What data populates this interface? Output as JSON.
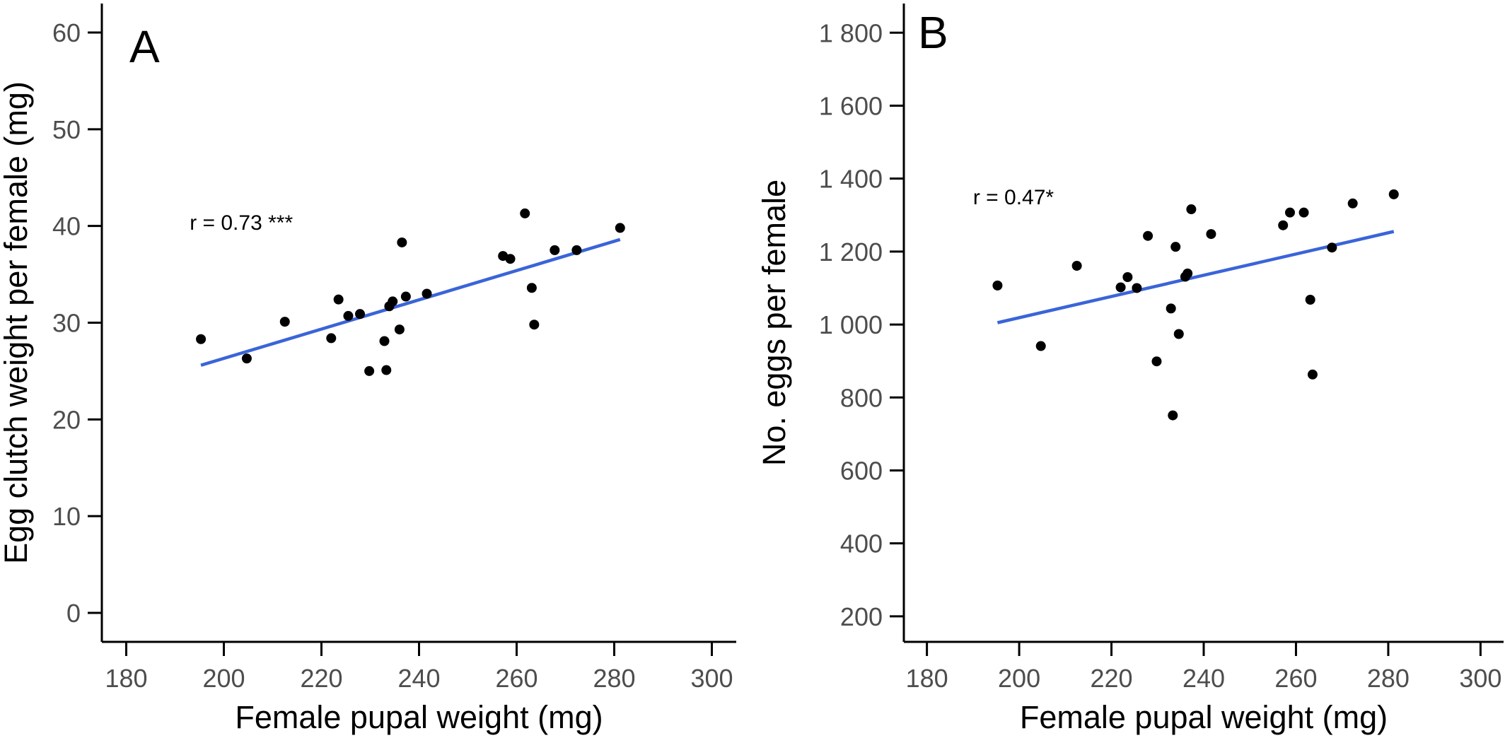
{
  "colors": {
    "points": "#000000",
    "fit_line": "#3a64d8",
    "axis": "#000000",
    "tick_label": "#4d4d4d"
  },
  "chart_data": [
    {
      "type": "scatter",
      "panel_label": "A",
      "xlabel": "Female pupal weight (mg)",
      "ylabel": "Egg clutch weight per female (mg)",
      "xlim": [
        175,
        305
      ],
      "ylim": [
        -3,
        63
      ],
      "xticks": [
        180,
        200,
        220,
        240,
        260,
        280,
        300
      ],
      "xtick_labels": [
        "180",
        "200",
        "220",
        "240",
        "260",
        "280",
        "300"
      ],
      "yticks": [
        0,
        10,
        20,
        30,
        40,
        50,
        60
      ],
      "ytick_labels": [
        "0",
        "10",
        "20",
        "30",
        "40",
        "50",
        "60"
      ],
      "grid": false,
      "annotation": {
        "text": "r = 0.73 ***",
        "x": 193,
        "y": 39.6
      },
      "fit_line": {
        "x": [
          195.3,
          281.2
        ],
        "y": [
          25.6,
          38.6
        ]
      },
      "points": [
        {
          "x": 195.3,
          "y": 28.3
        },
        {
          "x": 204.7,
          "y": 26.3
        },
        {
          "x": 212.5,
          "y": 30.1
        },
        {
          "x": 222.0,
          "y": 28.4
        },
        {
          "x": 223.5,
          "y": 32.4
        },
        {
          "x": 225.5,
          "y": 30.7
        },
        {
          "x": 227.9,
          "y": 30.9
        },
        {
          "x": 229.8,
          "y": 25.0
        },
        {
          "x": 232.9,
          "y": 28.1
        },
        {
          "x": 233.3,
          "y": 25.1
        },
        {
          "x": 233.9,
          "y": 31.7
        },
        {
          "x": 234.6,
          "y": 32.2
        },
        {
          "x": 236.0,
          "y": 29.3
        },
        {
          "x": 236.5,
          "y": 38.3
        },
        {
          "x": 237.3,
          "y": 32.7
        },
        {
          "x": 241.6,
          "y": 33.0
        },
        {
          "x": 257.2,
          "y": 36.9
        },
        {
          "x": 258.7,
          "y": 36.6
        },
        {
          "x": 261.7,
          "y": 41.3
        },
        {
          "x": 263.1,
          "y": 33.6
        },
        {
          "x": 263.6,
          "y": 29.8
        },
        {
          "x": 267.8,
          "y": 37.5
        },
        {
          "x": 272.3,
          "y": 37.5
        },
        {
          "x": 281.2,
          "y": 39.8
        }
      ]
    },
    {
      "type": "scatter",
      "panel_label": "B",
      "xlabel": "Female pupal weight (mg)",
      "ylabel": "No. eggs per female",
      "xlim": [
        175,
        305
      ],
      "ylim": [
        130,
        1880
      ],
      "xticks": [
        180,
        200,
        220,
        240,
        260,
        280,
        300
      ],
      "xtick_labels": [
        "180",
        "200",
        "220",
        "240",
        "260",
        "280",
        "300"
      ],
      "yticks": [
        200,
        400,
        600,
        800,
        1000,
        1200,
        1400,
        1600,
        1800
      ],
      "ytick_labels": [
        "200",
        "400",
        "600",
        "800",
        "1 000",
        "1 200",
        "1 400",
        "1 600",
        "1 800"
      ],
      "grid": false,
      "annotation": {
        "text": "r = 0.47*",
        "x": 190,
        "y": 1330
      },
      "fit_line": {
        "x": [
          195.3,
          281.2
        ],
        "y": [
          1005,
          1255
        ]
      },
      "points": [
        {
          "x": 195.3,
          "y": 1107
        },
        {
          "x": 204.7,
          "y": 941
        },
        {
          "x": 212.5,
          "y": 1161
        },
        {
          "x": 222.0,
          "y": 1102
        },
        {
          "x": 223.5,
          "y": 1130
        },
        {
          "x": 225.5,
          "y": 1100
        },
        {
          "x": 227.9,
          "y": 1243
        },
        {
          "x": 229.8,
          "y": 899
        },
        {
          "x": 232.9,
          "y": 1044
        },
        {
          "x": 233.3,
          "y": 751
        },
        {
          "x": 233.9,
          "y": 1213
        },
        {
          "x": 234.6,
          "y": 974
        },
        {
          "x": 236.0,
          "y": 1131
        },
        {
          "x": 236.5,
          "y": 1140
        },
        {
          "x": 237.3,
          "y": 1316
        },
        {
          "x": 241.6,
          "y": 1248
        },
        {
          "x": 257.2,
          "y": 1272
        },
        {
          "x": 258.7,
          "y": 1307
        },
        {
          "x": 261.7,
          "y": 1307
        },
        {
          "x": 263.1,
          "y": 1068
        },
        {
          "x": 263.6,
          "y": 863
        },
        {
          "x": 267.8,
          "y": 1211
        },
        {
          "x": 272.3,
          "y": 1332
        },
        {
          "x": 281.2,
          "y": 1357
        }
      ]
    }
  ]
}
